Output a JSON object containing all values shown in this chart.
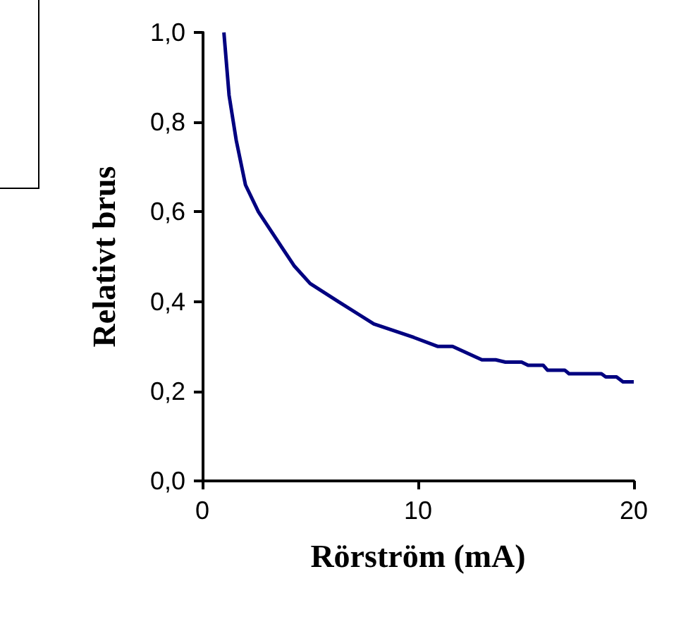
{
  "chart_data": {
    "type": "line",
    "xlabel": "Rörström (mA)",
    "ylabel": "Relativt brus",
    "x": [
      1,
      1.24,
      1.57,
      2,
      2.6,
      3.7,
      4.25,
      5,
      6.3,
      7.95,
      9.8,
      10.9,
      11.6,
      12.96,
      13.6,
      14.05,
      14.8,
      15.1,
      15.8,
      16,
      16.8,
      17,
      18.5,
      18.7,
      19.2,
      19.5,
      20
    ],
    "series": [
      {
        "color": "#000080",
        "values": [
          1.0,
          0.86,
          0.76,
          0.66,
          0.6,
          0.52,
          0.48,
          0.44,
          0.4,
          0.35,
          0.32,
          0.3,
          0.3,
          0.27,
          0.27,
          0.265,
          0.265,
          0.258,
          0.258,
          0.247,
          0.247,
          0.239,
          0.239,
          0.232,
          0.232,
          0.221,
          0.221
        ]
      }
    ],
    "xlim": [
      0,
      20
    ],
    "xticks": [
      0,
      10,
      20
    ],
    "ylim": [
      0,
      1
    ],
    "yticks": [
      {
        "value": 0,
        "label": "0,0"
      },
      {
        "value": 0.2,
        "label": "0,2"
      },
      {
        "value": 0.4,
        "label": "0,4"
      },
      {
        "value": 0.6,
        "label": "0,6"
      },
      {
        "value": 0.8,
        "label": "0,8"
      },
      {
        "value": 1,
        "label": "1,0"
      }
    ],
    "grid": false,
    "marker": "none",
    "line_style": "solid"
  }
}
